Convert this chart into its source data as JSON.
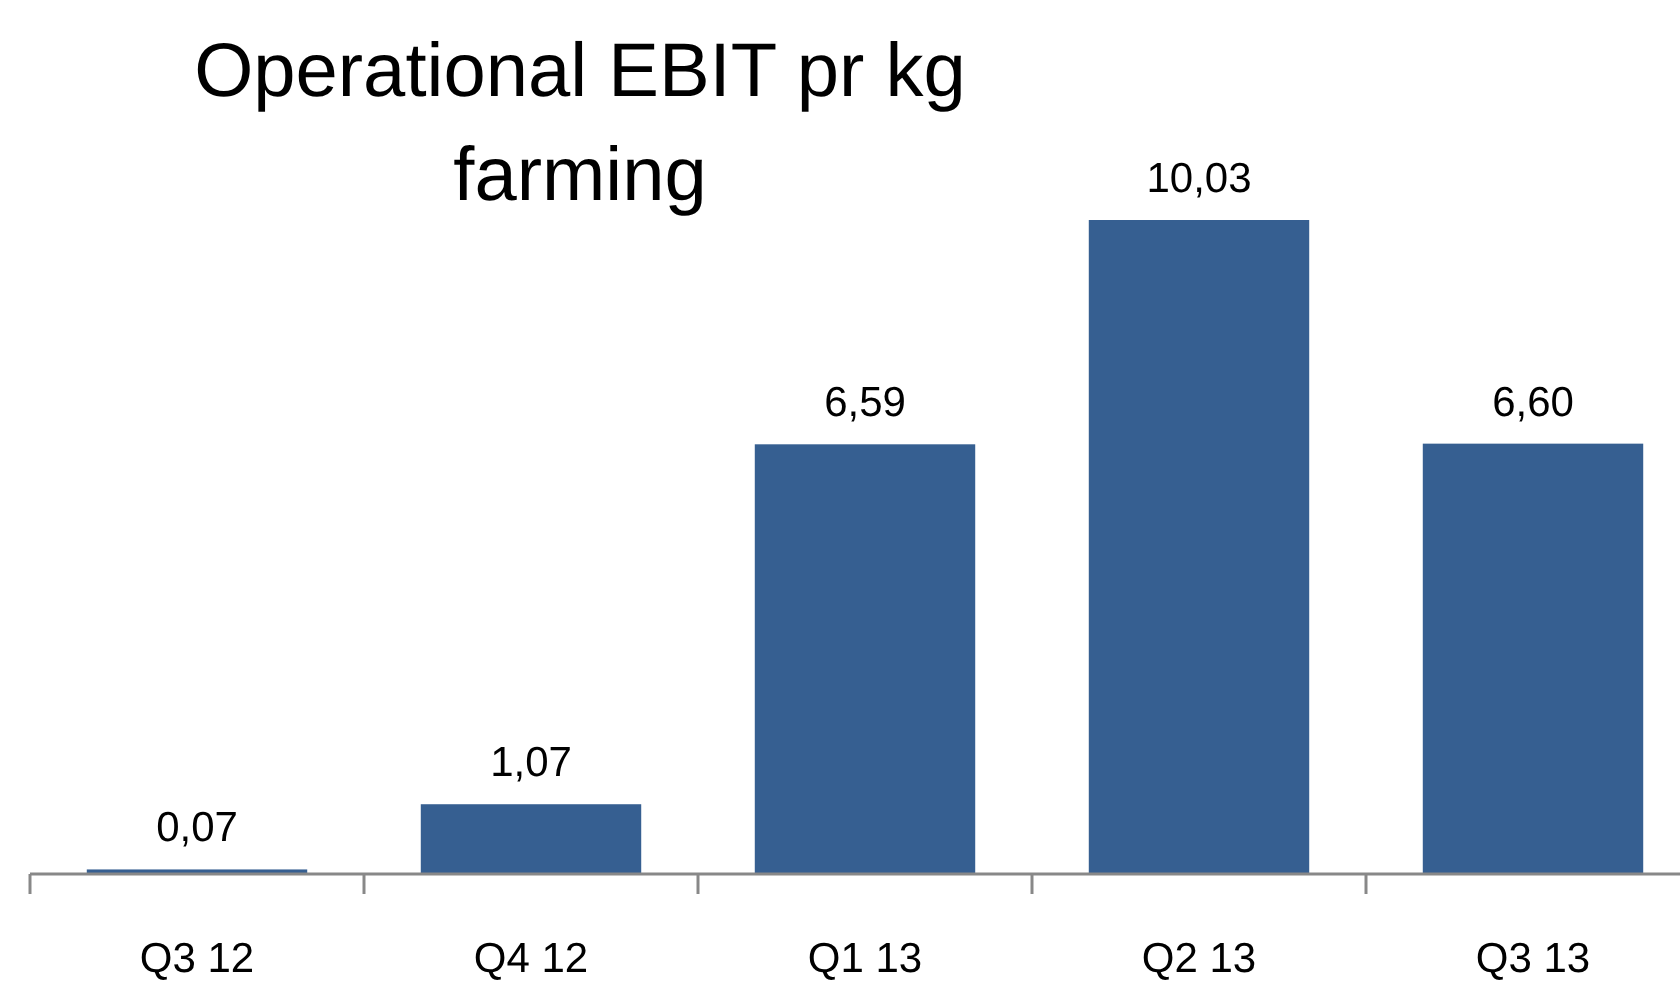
{
  "chart_data": {
    "type": "bar",
    "title": "Operational EBIT pr kg farming",
    "categories": [
      "Q3 12",
      "Q4 12",
      "Q1 13",
      "Q2 13",
      "Q3 13"
    ],
    "values": [
      0.07,
      1.07,
      6.59,
      10.03,
      6.6
    ],
    "value_labels": [
      "0,07",
      "1,07",
      "6,59",
      "10,03",
      "6,60"
    ],
    "color": "#365f91"
  }
}
